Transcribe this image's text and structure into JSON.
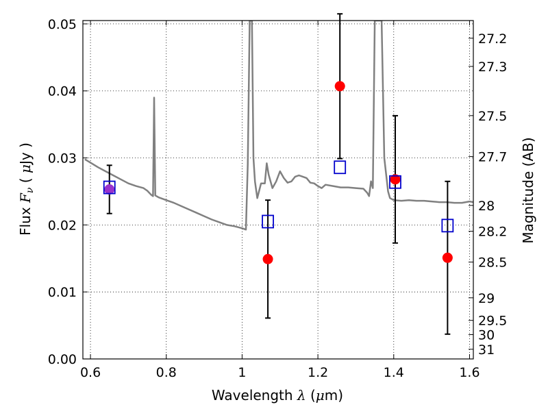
{
  "chart_data": {
    "type": "scatter",
    "xlabel": {
      "prefix": "Wavelength  ",
      "symbol": "λ",
      "units_open": " (",
      "mu": "μ",
      "units_rest": "m)"
    },
    "ylabel": {
      "prefix": "Flux  ",
      "symbol": "F",
      "subscript": "ν",
      "units_open": "  ( ",
      "mu": "μ",
      "units_rest": "Jy )"
    },
    "y2label": "Magnitude (AB)",
    "xlim": [
      0.58,
      1.61
    ],
    "ylim": [
      0.0,
      0.0505
    ],
    "x_ticks": [
      {
        "value": 0.6,
        "label": "0.6"
      },
      {
        "value": 0.8,
        "label": "0.8"
      },
      {
        "value": 1.0,
        "label": "1"
      },
      {
        "value": 1.2,
        "label": "1.2"
      },
      {
        "value": 1.4,
        "label": "1.4"
      },
      {
        "value": 1.6,
        "label": "1.6"
      }
    ],
    "y_ticks": [
      {
        "value": 0.0,
        "label": "0.00"
      },
      {
        "value": 0.01,
        "label": "0.01"
      },
      {
        "value": 0.02,
        "label": "0.02"
      },
      {
        "value": 0.03,
        "label": "0.03"
      },
      {
        "value": 0.04,
        "label": "0.04"
      },
      {
        "value": 0.05,
        "label": "0.05"
      }
    ],
    "y2_ticks": [
      {
        "value": 27.2,
        "label": "27.2"
      },
      {
        "value": 27.3,
        "label": "27.3"
      },
      {
        "value": 27.5,
        "label": "27.5"
      },
      {
        "value": 27.7,
        "label": "27.7"
      },
      {
        "value": 28.0,
        "label": "28"
      },
      {
        "value": 28.2,
        "label": "28.2"
      },
      {
        "value": 28.5,
        "label": "28.5"
      },
      {
        "value": 29.0,
        "label": "29"
      },
      {
        "value": 29.5,
        "label": "29.5"
      },
      {
        "value": 30.0,
        "label": "30"
      },
      {
        "value": 31.0,
        "label": "31"
      }
    ],
    "grid": true,
    "colors": {
      "model": "#808080",
      "observed": "#ff0000",
      "synthetic": "#0000cc",
      "optical": "#9932cc",
      "errorbar": "#000000"
    },
    "model_spectrum": [
      [
        0.585,
        0.0298
      ],
      [
        0.6,
        0.0293
      ],
      [
        0.62,
        0.0286
      ],
      [
        0.64,
        0.028
      ],
      [
        0.66,
        0.0274
      ],
      [
        0.68,
        0.0268
      ],
      [
        0.7,
        0.0262
      ],
      [
        0.72,
        0.0258
      ],
      [
        0.74,
        0.0255
      ],
      [
        0.75,
        0.0251
      ],
      [
        0.76,
        0.0245
      ],
      [
        0.765,
        0.0243
      ],
      [
        0.768,
        0.039
      ],
      [
        0.771,
        0.0244
      ],
      [
        0.78,
        0.0241
      ],
      [
        0.8,
        0.0237
      ],
      [
        0.82,
        0.0233
      ],
      [
        0.84,
        0.0228
      ],
      [
        0.86,
        0.0223
      ],
      [
        0.88,
        0.0218
      ],
      [
        0.9,
        0.0213
      ],
      [
        0.92,
        0.0208
      ],
      [
        0.94,
        0.0204
      ],
      [
        0.96,
        0.02
      ],
      [
        0.98,
        0.0198
      ],
      [
        1.0,
        0.0195
      ],
      [
        1.01,
        0.0193
      ],
      [
        1.015,
        0.029
      ],
      [
        1.02,
        0.0505
      ],
      [
        1.026,
        0.0505
      ],
      [
        1.03,
        0.03
      ],
      [
        1.034,
        0.0265
      ],
      [
        1.04,
        0.024
      ],
      [
        1.05,
        0.0262
      ],
      [
        1.06,
        0.0262
      ],
      [
        1.065,
        0.0292
      ],
      [
        1.07,
        0.0275
      ],
      [
        1.08,
        0.0255
      ],
      [
        1.09,
        0.0265
      ],
      [
        1.1,
        0.028
      ],
      [
        1.11,
        0.027
      ],
      [
        1.12,
        0.0263
      ],
      [
        1.13,
        0.0265
      ],
      [
        1.14,
        0.0272
      ],
      [
        1.15,
        0.0274
      ],
      [
        1.16,
        0.0272
      ],
      [
        1.17,
        0.027
      ],
      [
        1.18,
        0.0263
      ],
      [
        1.19,
        0.0262
      ],
      [
        1.2,
        0.0258
      ],
      [
        1.21,
        0.0255
      ],
      [
        1.22,
        0.026
      ],
      [
        1.24,
        0.0258
      ],
      [
        1.26,
        0.0256
      ],
      [
        1.28,
        0.0256
      ],
      [
        1.3,
        0.0255
      ],
      [
        1.32,
        0.0254
      ],
      [
        1.33,
        0.0248
      ],
      [
        1.335,
        0.0243
      ],
      [
        1.34,
        0.0265
      ],
      [
        1.345,
        0.0255
      ],
      [
        1.35,
        0.0505
      ],
      [
        1.368,
        0.0505
      ],
      [
        1.375,
        0.03
      ],
      [
        1.385,
        0.025
      ],
      [
        1.39,
        0.024
      ],
      [
        1.4,
        0.0237
      ],
      [
        1.42,
        0.0236
      ],
      [
        1.44,
        0.0237
      ],
      [
        1.46,
        0.0236
      ],
      [
        1.48,
        0.0236
      ],
      [
        1.5,
        0.0235
      ],
      [
        1.52,
        0.0234
      ],
      [
        1.54,
        0.0234
      ],
      [
        1.56,
        0.0233
      ],
      [
        1.58,
        0.0233
      ],
      [
        1.6,
        0.0235
      ],
      [
        1.61,
        0.0234
      ]
    ],
    "observed": [
      {
        "x": 0.65,
        "y": 0.0253,
        "err_lo": 0.0036,
        "err_hi": 0.0036,
        "color": "optical"
      },
      {
        "x": 1.068,
        "y": 0.0149,
        "err_lo": 0.0088,
        "err_hi": 0.0088,
        "color": "observed"
      },
      {
        "x": 1.258,
        "y": 0.0407,
        "err_lo": 0.0108,
        "err_hi": 0.0108,
        "color": "observed"
      },
      {
        "x": 1.404,
        "y": 0.0268,
        "err_lo": 0.0095,
        "err_hi": 0.0095,
        "color": "observed"
      },
      {
        "x": 1.542,
        "y": 0.0151,
        "err_lo": 0.0114,
        "err_hi": 0.0114,
        "color": "observed"
      }
    ],
    "synthetic": [
      {
        "x": 0.65,
        "y": 0.0256
      },
      {
        "x": 1.068,
        "y": 0.0205
      },
      {
        "x": 1.258,
        "y": 0.0286
      },
      {
        "x": 1.404,
        "y": 0.0264
      },
      {
        "x": 1.542,
        "y": 0.0199
      }
    ]
  }
}
